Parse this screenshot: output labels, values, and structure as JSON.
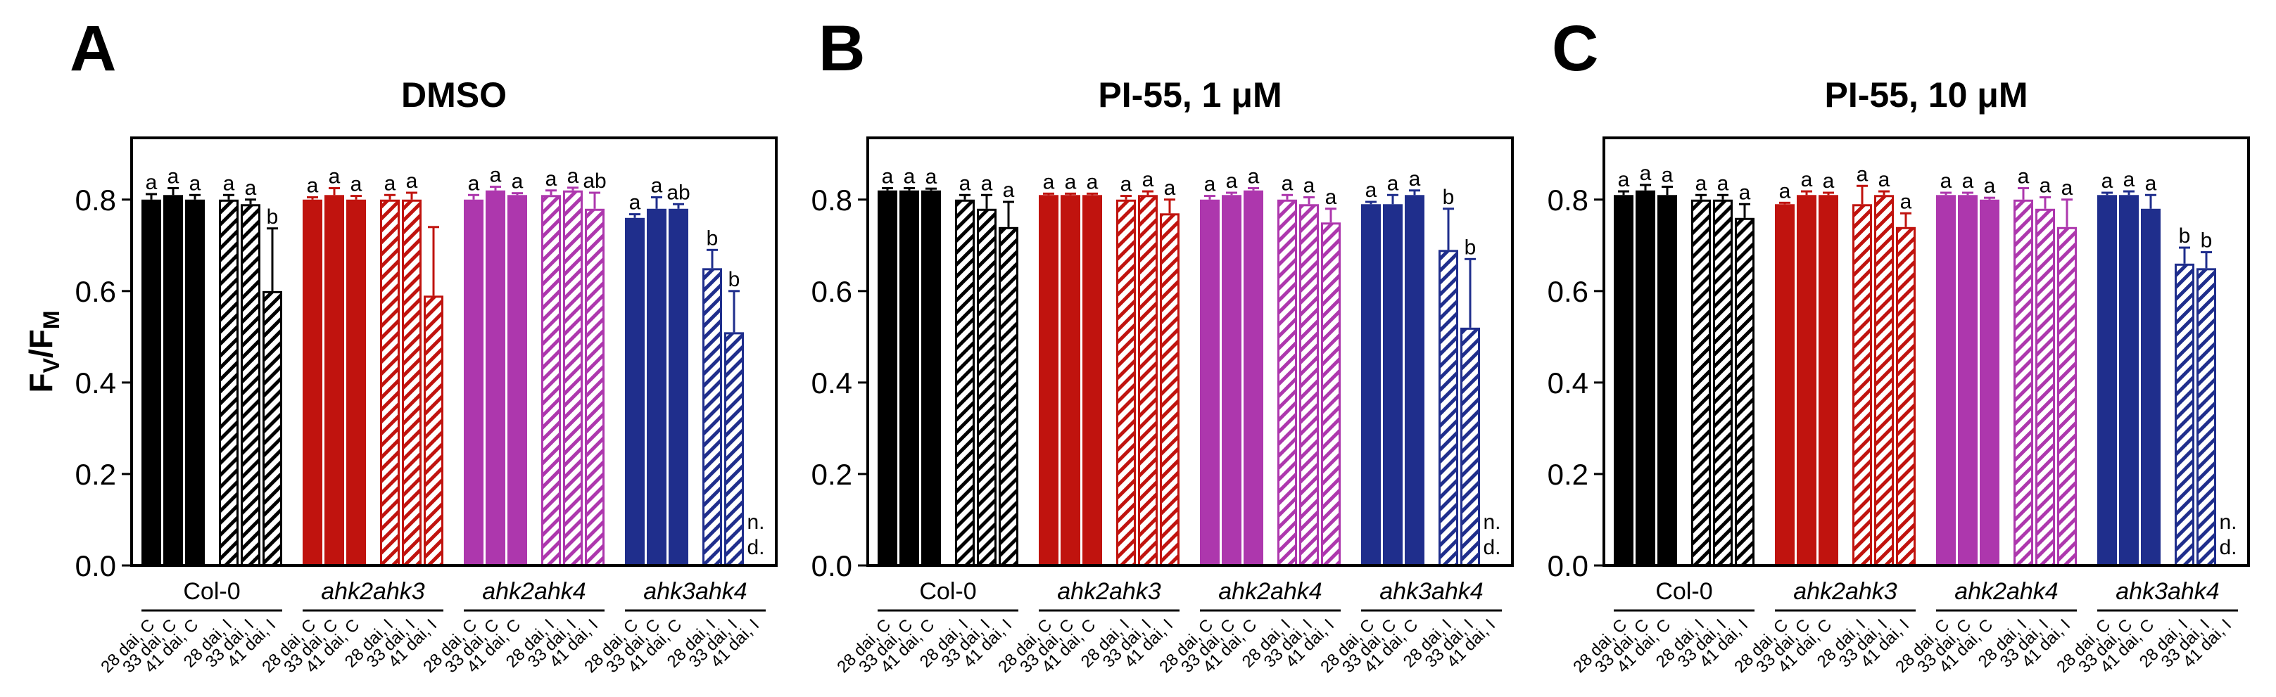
{
  "chart_data": [
    {
      "type": "bar",
      "panel": "A",
      "title": "DMSO",
      "ylabel": [
        {
          "text": "F",
          "sub": false
        },
        {
          "text": "V",
          "sub": true
        },
        {
          "text": "/",
          "sub": false
        },
        {
          "text": "F",
          "sub": false
        },
        {
          "text": "M",
          "sub": true
        }
      ],
      "ylim": [
        0,
        0.935
      ],
      "yticks": [
        0,
        0.2,
        0.4,
        0.6,
        0.8
      ],
      "ytick_labels": [
        "0.0",
        "0.2",
        "0.4",
        "0.6",
        "0.8"
      ],
      "grid": false,
      "conditions": [
        "28 dai, C",
        "33 dai, C",
        "41 dai, C",
        "28 dai, I",
        "33 dai, I",
        "41 dai, I"
      ],
      "pattern": [
        "solid",
        "solid",
        "solid",
        "hatched",
        "hatched",
        "hatched"
      ],
      "nd_label": [
        "n.",
        "d."
      ],
      "series": [
        {
          "name": "Col-0",
          "italic": false,
          "color": "#000000",
          "values": [
            0.8,
            0.81,
            0.8,
            0.8,
            0.79,
            0.6
          ],
          "errors": [
            0.012,
            0.015,
            0.01,
            0.01,
            0.01,
            0.137
          ],
          "letters": [
            "a",
            "a",
            "a",
            "a",
            "a",
            "b"
          ]
        },
        {
          "name": "ahk2ahk3",
          "italic": true,
          "color": "#c0130e",
          "values": [
            0.8,
            0.81,
            0.8,
            0.8,
            0.8,
            0.59
          ],
          "errors": [
            0.005,
            0.015,
            0.008,
            0.01,
            0.015,
            0.15
          ],
          "letters": [
            "a",
            "a",
            "a",
            "a",
            "a",
            null
          ]
        },
        {
          "name": "ahk2ahk4",
          "italic": true,
          "color": "#ad37ad",
          "values": [
            0.8,
            0.82,
            0.81,
            0.81,
            0.82,
            0.78
          ],
          "errors": [
            0.01,
            0.008,
            0.004,
            0.01,
            0.006,
            0.035
          ],
          "letters": [
            "a",
            "a",
            "a",
            "a",
            "a",
            "ab"
          ]
        },
        {
          "name": "ahk3ahk4",
          "italic": true,
          "color": "#1f2e8c",
          "values": [
            0.76,
            0.78,
            0.78,
            0.65,
            0.51,
            null
          ],
          "errors": [
            0.008,
            0.025,
            0.01,
            0.04,
            0.09,
            null
          ],
          "letters": [
            "a",
            "a",
            "ab",
            "b",
            "b",
            null
          ]
        }
      ]
    },
    {
      "type": "bar",
      "panel": "B",
      "title": "PI-55, 1 μM",
      "ylabel": [],
      "ylim": [
        0,
        0.935
      ],
      "yticks": [
        0,
        0.2,
        0.4,
        0.6,
        0.8
      ],
      "ytick_labels": [
        "0.0",
        "0.2",
        "0.4",
        "0.6",
        "0.8"
      ],
      "grid": false,
      "conditions": [
        "28 dai, C",
        "33 dai, C",
        "41 dai, C",
        "28 dai, I",
        "33 dai, I",
        "41 dai, I"
      ],
      "pattern": [
        "solid",
        "solid",
        "solid",
        "hatched",
        "hatched",
        "hatched"
      ],
      "nd_label": [
        "n.",
        "d."
      ],
      "series": [
        {
          "name": "Col-0",
          "italic": false,
          "color": "#000000",
          "values": [
            0.82,
            0.82,
            0.82,
            0.8,
            0.78,
            0.74
          ],
          "errors": [
            0.005,
            0.005,
            0.004,
            0.01,
            0.03,
            0.055
          ],
          "letters": [
            "a",
            "a",
            "a",
            "a",
            "a",
            "a"
          ]
        },
        {
          "name": "ahk2ahk3",
          "italic": true,
          "color": "#c0130e",
          "values": [
            0.81,
            0.81,
            0.81,
            0.8,
            0.81,
            0.77
          ],
          "errors": [
            0.003,
            0.003,
            0.003,
            0.008,
            0.008,
            0.03
          ],
          "letters": [
            "a",
            "a",
            "a",
            "a",
            "a",
            "a"
          ]
        },
        {
          "name": "ahk2ahk4",
          "italic": true,
          "color": "#ad37ad",
          "values": [
            0.8,
            0.81,
            0.82,
            0.8,
            0.79,
            0.75
          ],
          "errors": [
            0.008,
            0.005,
            0.005,
            0.01,
            0.015,
            0.03
          ],
          "letters": [
            "a",
            "a",
            "a",
            "a",
            "a",
            "a"
          ]
        },
        {
          "name": "ahk3ahk4",
          "italic": true,
          "color": "#1f2e8c",
          "values": [
            0.79,
            0.79,
            0.81,
            0.69,
            0.52,
            null
          ],
          "errors": [
            0.005,
            0.02,
            0.01,
            0.09,
            0.15,
            null
          ],
          "letters": [
            "a",
            "a",
            "a",
            "b",
            "b",
            null
          ]
        }
      ]
    },
    {
      "type": "bar",
      "panel": "C",
      "title": "PI-55, 10 μM",
      "ylabel": [],
      "ylim": [
        0,
        0.935
      ],
      "yticks": [
        0,
        0.2,
        0.4,
        0.6,
        0.8
      ],
      "ytick_labels": [
        "0.0",
        "0.2",
        "0.4",
        "0.6",
        "0.8"
      ],
      "grid": false,
      "conditions": [
        "28 dai, C",
        "33 dai, C",
        "41 dai, C",
        "28 dai, I",
        "33 dai, I",
        "41 dai, I"
      ],
      "pattern": [
        "solid",
        "solid",
        "solid",
        "hatched",
        "hatched",
        "hatched"
      ],
      "nd_label": [
        "n.",
        "d."
      ],
      "series": [
        {
          "name": "Col-0",
          "italic": false,
          "color": "#000000",
          "values": [
            0.81,
            0.82,
            0.81,
            0.8,
            0.8,
            0.76
          ],
          "errors": [
            0.008,
            0.012,
            0.018,
            0.01,
            0.01,
            0.03
          ],
          "letters": [
            "a",
            "a",
            "a",
            "a",
            "a",
            "a"
          ]
        },
        {
          "name": "ahk2ahk3",
          "italic": true,
          "color": "#c0130e",
          "values": [
            0.79,
            0.81,
            0.81,
            0.79,
            0.81,
            0.74
          ],
          "errors": [
            0.003,
            0.008,
            0.005,
            0.04,
            0.008,
            0.03
          ],
          "letters": [
            "a",
            "a",
            "a",
            "a",
            "a",
            "a"
          ]
        },
        {
          "name": "ahk2ahk4",
          "italic": true,
          "color": "#ad37ad",
          "values": [
            0.81,
            0.81,
            0.8,
            0.8,
            0.78,
            0.74
          ],
          "errors": [
            0.005,
            0.005,
            0.004,
            0.025,
            0.025,
            0.06
          ],
          "letters": [
            "a",
            "a",
            "a",
            "a",
            "a",
            "a"
          ]
        },
        {
          "name": "ahk3ahk4",
          "italic": true,
          "color": "#1f2e8c",
          "values": [
            0.81,
            0.81,
            0.78,
            0.66,
            0.65,
            null
          ],
          "errors": [
            0.005,
            0.008,
            0.03,
            0.035,
            0.035,
            null
          ],
          "letters": [
            "a",
            "a",
            "a",
            "b",
            "b",
            null
          ]
        }
      ]
    }
  ]
}
